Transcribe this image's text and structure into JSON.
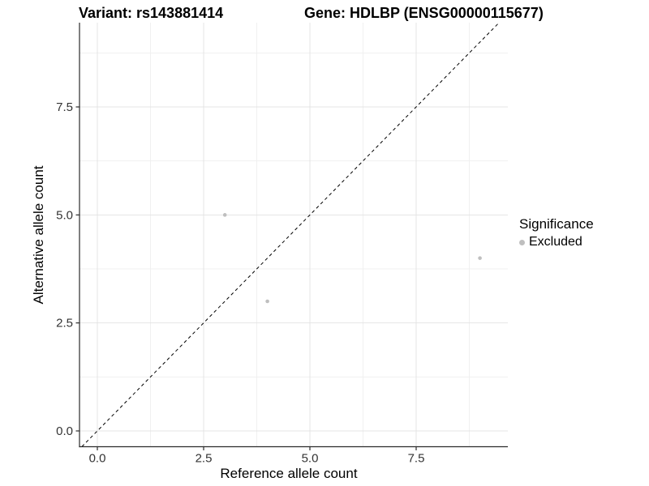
{
  "chart_data": {
    "type": "scatter",
    "title_left": "Variant: rs143881414",
    "title_right": "Gene: HDLBP (ENSG00000115677)",
    "xlabel": "Reference allele count",
    "ylabel": "Alternative allele count",
    "x_ticks": {
      "values": [
        0,
        2.5,
        5,
        7.5
      ],
      "labels": [
        "0.0",
        "2.5",
        "5.0",
        "7.5"
      ]
    },
    "y_ticks": {
      "values": [
        0,
        2.5,
        5,
        7.5
      ],
      "labels": [
        "0.0",
        "2.5",
        "5.0",
        "7.5"
      ]
    },
    "x_minor": [
      1.25,
      3.75,
      6.25,
      8.75
    ],
    "y_minor": [
      1.25,
      3.75,
      6.25,
      8.75
    ],
    "xlim": [
      -0.43,
      9.66
    ],
    "ylim": [
      -0.37,
      9.45
    ],
    "grid": true,
    "identity_line": {
      "slope": 1,
      "intercept": 0,
      "style": "dashed",
      "color": "#000000"
    },
    "series": [
      {
        "name": "Excluded",
        "color": "#bfbfbf",
        "points": [
          {
            "x": 3,
            "y": 5
          },
          {
            "x": 4,
            "y": 3
          },
          {
            "x": 9,
            "y": 4
          }
        ]
      }
    ],
    "legend": {
      "title": "Significance",
      "position": "right",
      "items": [
        {
          "label": "Excluded",
          "color": "#bfbfbf"
        }
      ]
    }
  },
  "colors": {
    "background": "#ffffff",
    "point": "#bfbfbf",
    "grid_major": "#e4e4e4",
    "grid_minor": "#f0f0f0",
    "axis_line": "#2b2b2b",
    "tick_label": "#333333",
    "diagonal": "#000000"
  }
}
